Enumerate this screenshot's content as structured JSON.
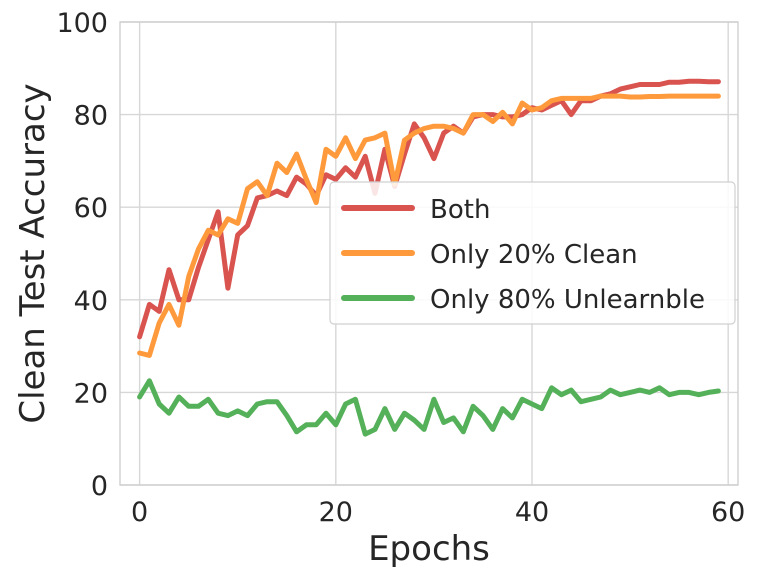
{
  "chart_data": {
    "type": "line",
    "title": "",
    "xlabel": "Epochs",
    "ylabel": "Clean Test Accuracy",
    "xlim": [
      -2,
      61
    ],
    "ylim": [
      0,
      100
    ],
    "xticks": [
      0,
      20,
      40,
      60
    ],
    "yticks": [
      0,
      20,
      40,
      60,
      80,
      100
    ],
    "grid": true,
    "legend_position": "center-right",
    "series": [
      {
        "name": "Both",
        "color": "#d9534f",
        "x": [
          0,
          1,
          2,
          3,
          4,
          5,
          6,
          7,
          8,
          9,
          10,
          11,
          12,
          13,
          14,
          15,
          16,
          17,
          18,
          19,
          20,
          21,
          22,
          23,
          24,
          25,
          26,
          27,
          28,
          29,
          30,
          31,
          32,
          33,
          34,
          35,
          36,
          37,
          38,
          39,
          40,
          41,
          42,
          43,
          44,
          45,
          46,
          47,
          48,
          49,
          50,
          51,
          52,
          53,
          54,
          55,
          56,
          57,
          58,
          59
        ],
        "values": [
          32,
          39,
          37.5,
          46.5,
          40,
          40,
          47,
          53,
          59,
          42.5,
          54,
          56,
          62,
          62.5,
          63.5,
          62.5,
          66.5,
          65,
          62.5,
          67,
          66,
          68.5,
          66.5,
          71,
          63,
          72.5,
          64.5,
          71.5,
          78,
          75,
          70.5,
          76,
          77.5,
          76,
          79.5,
          80,
          80,
          79.5,
          79.5,
          80,
          81.5,
          81,
          82,
          83,
          80,
          83,
          83,
          84,
          84.5,
          85.5,
          86,
          86.5,
          86.5,
          86.5,
          87,
          87,
          87.2,
          87.2,
          87.1,
          87.1
        ]
      },
      {
        "name": "Only 20% Clean",
        "color": "#ff9a3c",
        "x": [
          0,
          1,
          2,
          3,
          4,
          5,
          6,
          7,
          8,
          9,
          10,
          11,
          12,
          13,
          14,
          15,
          16,
          17,
          18,
          19,
          20,
          21,
          22,
          23,
          24,
          25,
          26,
          27,
          28,
          29,
          30,
          31,
          32,
          33,
          34,
          35,
          36,
          37,
          38,
          39,
          40,
          41,
          42,
          43,
          44,
          45,
          46,
          47,
          48,
          49,
          50,
          51,
          52,
          53,
          54,
          55,
          56,
          57,
          58,
          59
        ],
        "values": [
          28.5,
          28,
          35,
          39,
          34.5,
          45,
          51,
          55,
          54,
          57.5,
          56.5,
          64,
          65.5,
          62.5,
          69.5,
          67.5,
          71.5,
          66,
          61,
          72.5,
          71,
          75,
          70.5,
          74.5,
          75,
          76,
          65,
          74.5,
          76,
          77,
          77.5,
          77.5,
          77,
          76,
          80,
          80,
          78.5,
          80.5,
          78,
          82.5,
          81,
          81.5,
          83,
          83.5,
          83.5,
          83.5,
          83.5,
          84,
          84,
          84,
          83.8,
          83.8,
          83.9,
          83.9,
          84,
          84,
          84,
          84,
          84,
          84
        ]
      },
      {
        "name": "Only 80% Unlearnble",
        "color": "#55b05a",
        "x": [
          0,
          1,
          2,
          3,
          4,
          5,
          6,
          7,
          8,
          9,
          10,
          11,
          12,
          13,
          14,
          15,
          16,
          17,
          18,
          19,
          20,
          21,
          22,
          23,
          24,
          25,
          26,
          27,
          28,
          29,
          30,
          31,
          32,
          33,
          34,
          35,
          36,
          37,
          38,
          39,
          40,
          41,
          42,
          43,
          44,
          45,
          46,
          47,
          48,
          49,
          50,
          51,
          52,
          53,
          54,
          55,
          56,
          57,
          58,
          59
        ],
        "values": [
          19,
          22.5,
          17.5,
          15.5,
          19,
          17,
          17,
          18.5,
          15.5,
          15,
          16,
          15,
          17.5,
          18,
          18,
          15,
          11.5,
          13,
          13,
          15.5,
          13,
          17.5,
          18.5,
          11,
          12,
          16.5,
          12,
          15.5,
          14,
          12,
          18.5,
          13.5,
          14.5,
          11.5,
          17,
          15,
          12,
          16.5,
          14.5,
          18.5,
          17.5,
          16.5,
          21,
          19.5,
          20.5,
          18,
          18.5,
          19,
          20.5,
          19.5,
          20,
          20.5,
          20,
          21,
          19.5,
          20,
          20,
          19.5,
          20,
          20.3
        ]
      }
    ]
  }
}
